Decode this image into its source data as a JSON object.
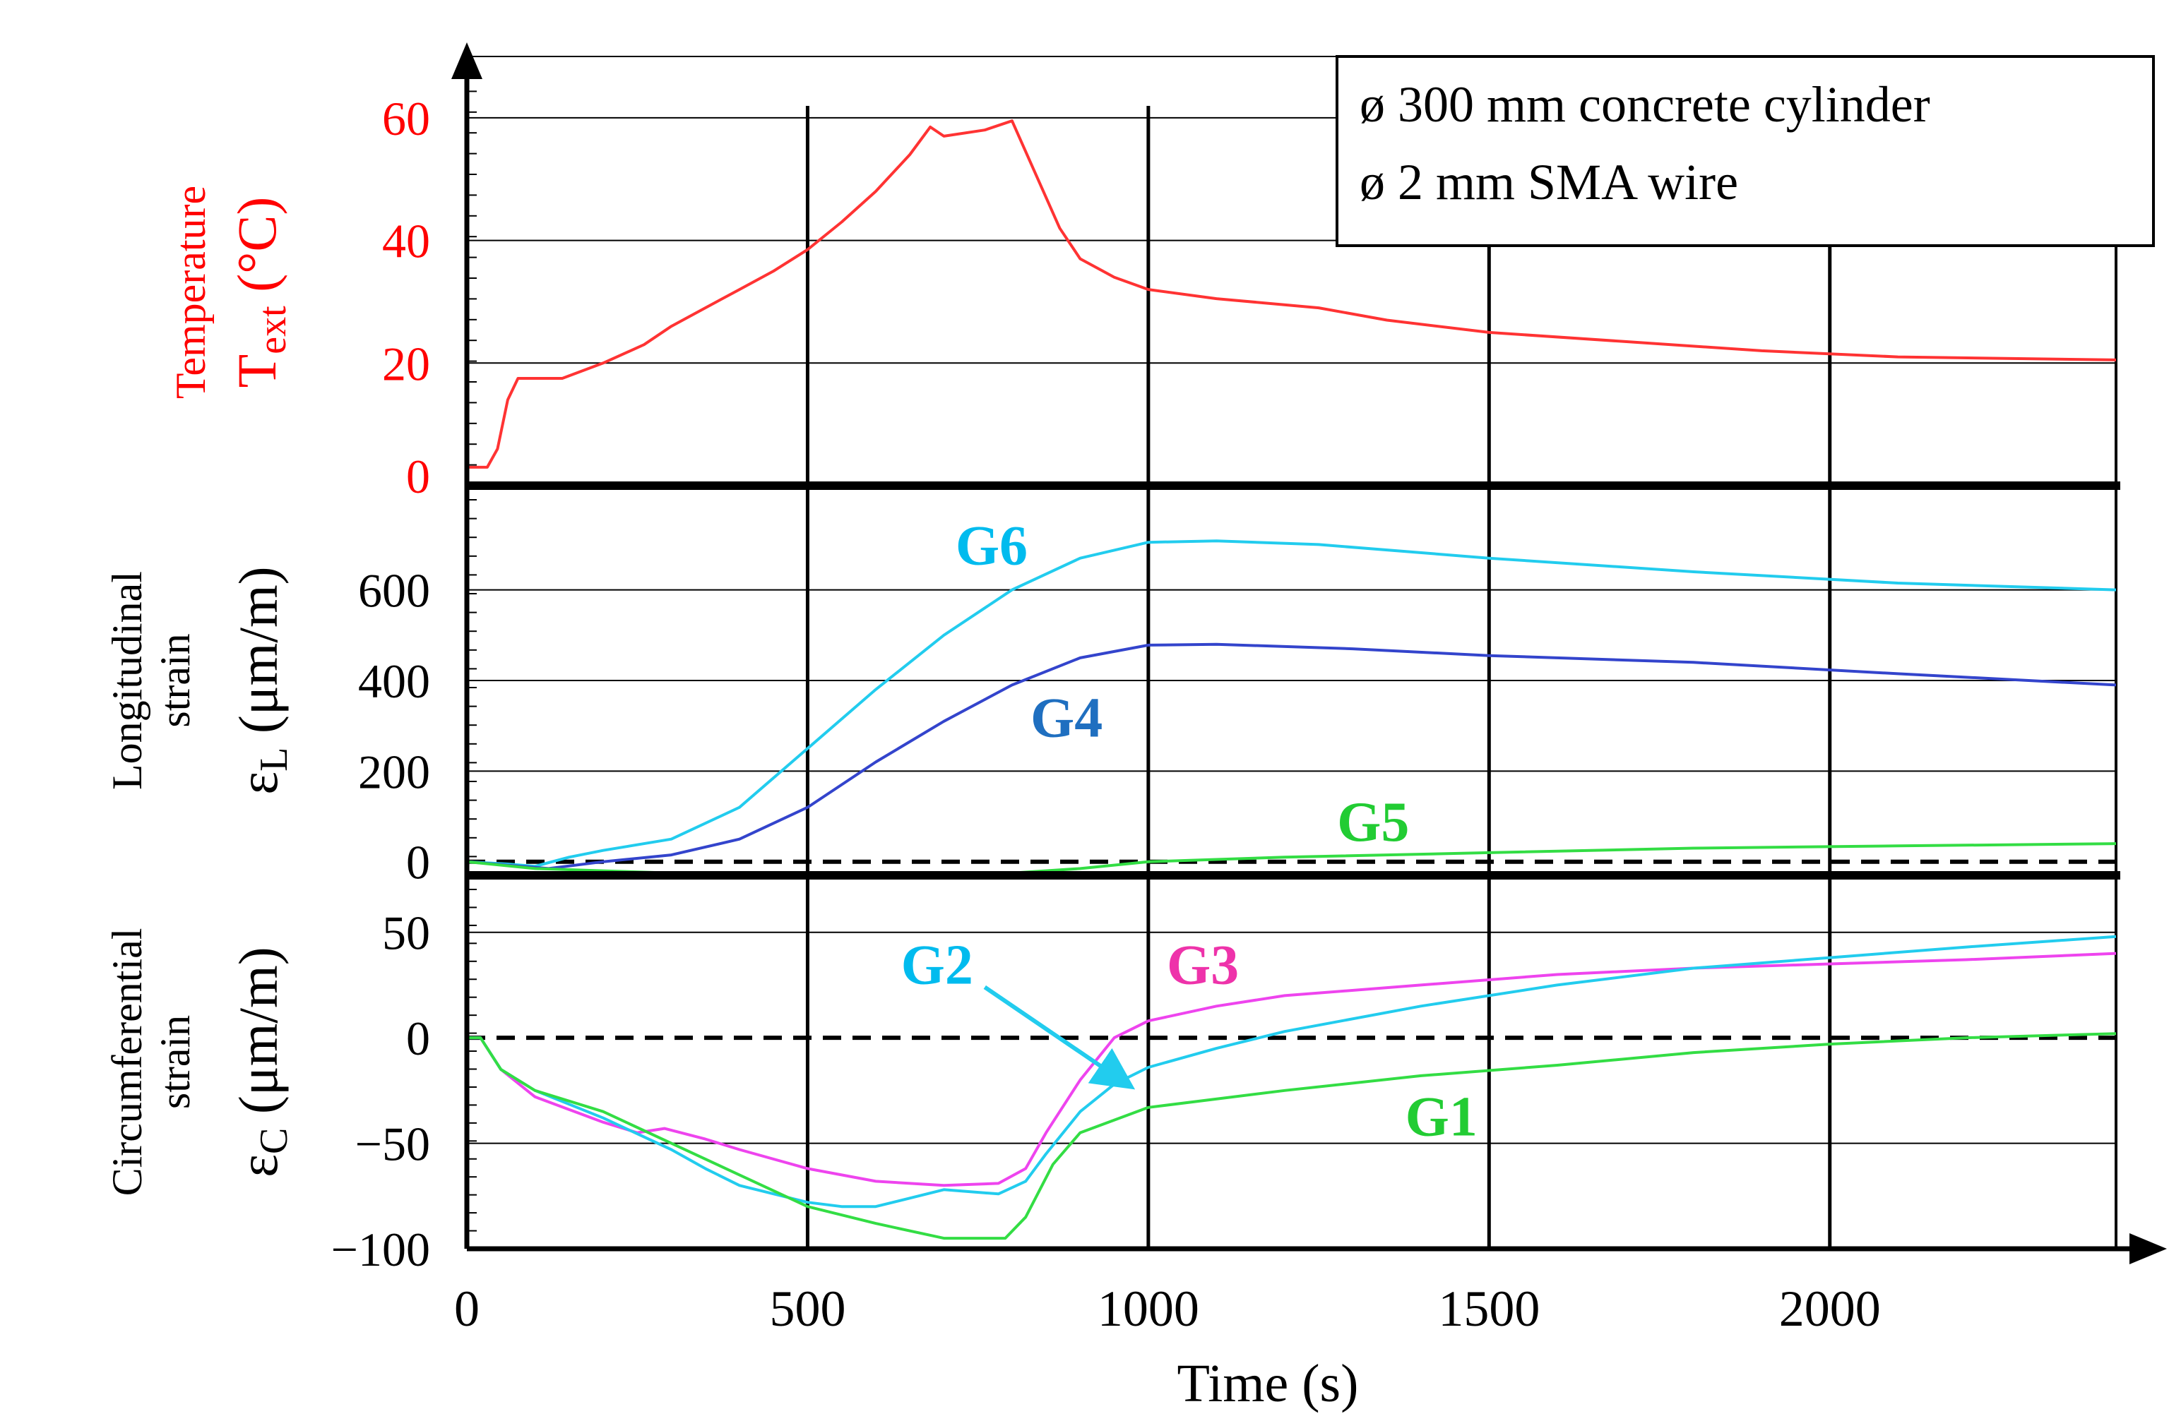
{
  "colors": {
    "temperature": "#ff3333",
    "temperature_label": "#ff0000",
    "cyan": "#22ccee",
    "cyan_label": "#00bbee",
    "blue": "#3344cc",
    "blue_label": "#1f6fc0",
    "green": "#33dd44",
    "green_label": "#22cc33",
    "magenta": "#ee44ee",
    "magenta_label": "#ee33aa",
    "grid": "#000000"
  },
  "chart_data": {
    "type": "line",
    "x_axis": {
      "label": "Time (s)",
      "range": [
        0,
        2420
      ],
      "ticks": [
        0,
        500,
        1000,
        1500,
        2000
      ],
      "tick_labels": [
        "0",
        "500",
        "1000",
        "1500",
        "2000"
      ]
    },
    "legend_box": {
      "placement": "top-right",
      "lines": [
        "ø 300 mm concrete cylinder",
        "ø 2 mm SMA wire"
      ]
    },
    "panels": [
      {
        "id": "temperature",
        "ylabel_top": "Temperature",
        "ylabel_main": "T",
        "ylabel_sub": "ext",
        "ylabel_unit": " (°C)",
        "yrange": [
          0,
          70
        ],
        "ticks": [
          0,
          20,
          40,
          60
        ],
        "tick_labels": [
          "0",
          "20",
          "40",
          "60"
        ],
        "series": [
          {
            "name": "Text",
            "color_key": "temperature",
            "points": [
              [
                0,
                3
              ],
              [
                30,
                3
              ],
              [
                45,
                6
              ],
              [
                60,
                14
              ],
              [
                75,
                17.5
              ],
              [
                140,
                17.5
              ],
              [
                200,
                20
              ],
              [
                260,
                23
              ],
              [
                300,
                26
              ],
              [
                350,
                29
              ],
              [
                400,
                32
              ],
              [
                450,
                35
              ],
              [
                500,
                38.5
              ],
              [
                550,
                43
              ],
              [
                600,
                48
              ],
              [
                650,
                54
              ],
              [
                680,
                58.5
              ],
              [
                700,
                57
              ],
              [
                760,
                58
              ],
              [
                800,
                59.5
              ],
              [
                830,
                52
              ],
              [
                870,
                42
              ],
              [
                900,
                37
              ],
              [
                950,
                34
              ],
              [
                1000,
                32
              ],
              [
                1100,
                30.5
              ],
              [
                1250,
                29
              ],
              [
                1350,
                27
              ],
              [
                1500,
                25
              ],
              [
                1700,
                23.5
              ],
              [
                1900,
                22
              ],
              [
                2100,
                21
              ],
              [
                2420,
                20.5
              ]
            ]
          }
        ],
        "annotations": []
      },
      {
        "id": "longitudinal",
        "ylabel_top": "Longitudinal",
        "ylabel_bottom": "strain",
        "ylabel_main": "ε",
        "ylabel_sub": "L",
        "ylabel_unit": " (μm/m)",
        "yrange": [
          -30,
          830
        ],
        "ticks": [
          0,
          200,
          400,
          600
        ],
        "tick_labels": [
          "0",
          "200",
          "400",
          "600"
        ],
        "zero_line": true,
        "series": [
          {
            "name": "G6",
            "color_key": "cyan",
            "points": [
              [
                0,
                0
              ],
              [
                60,
                -5
              ],
              [
                100,
                -10
              ],
              [
                150,
                10
              ],
              [
                200,
                25
              ],
              [
                300,
                50
              ],
              [
                400,
                120
              ],
              [
                500,
                250
              ],
              [
                600,
                380
              ],
              [
                700,
                500
              ],
              [
                800,
                600
              ],
              [
                900,
                670
              ],
              [
                1000,
                705
              ],
              [
                1100,
                708
              ],
              [
                1250,
                700
              ],
              [
                1500,
                670
              ],
              [
                1800,
                640
              ],
              [
                2100,
                615
              ],
              [
                2420,
                600
              ]
            ]
          },
          {
            "name": "G4",
            "color_key": "blue",
            "points": [
              [
                0,
                0
              ],
              [
                80,
                -10
              ],
              [
                120,
                -15
              ],
              [
                200,
                0
              ],
              [
                300,
                15
              ],
              [
                400,
                50
              ],
              [
                500,
                120
              ],
              [
                600,
                220
              ],
              [
                700,
                310
              ],
              [
                800,
                390
              ],
              [
                900,
                450
              ],
              [
                1000,
                478
              ],
              [
                1100,
                480
              ],
              [
                1300,
                470
              ],
              [
                1500,
                455
              ],
              [
                1800,
                440
              ],
              [
                2100,
                415
              ],
              [
                2420,
                390
              ]
            ]
          },
          {
            "name": "G5",
            "color_key": "green",
            "points": [
              [
                0,
                0
              ],
              [
                100,
                -15
              ],
              [
                200,
                -20
              ],
              [
                300,
                -25
              ],
              [
                500,
                -35
              ],
              [
                600,
                -30
              ],
              [
                800,
                -25
              ],
              [
                900,
                -15
              ],
              [
                1000,
                0
              ],
              [
                1200,
                10
              ],
              [
                1500,
                20
              ],
              [
                1800,
                30
              ],
              [
                2100,
                35
              ],
              [
                2420,
                40
              ]
            ]
          }
        ],
        "annotations": [
          {
            "text": "G6",
            "color_key": "cyan_label",
            "x": 770,
            "y": 700
          },
          {
            "text": "G4",
            "color_key": "blue_label",
            "x": 880,
            "y": 320
          },
          {
            "text": "G5",
            "color_key": "green_label",
            "x": 1330,
            "y": 90
          }
        ]
      },
      {
        "id": "circumferential",
        "ylabel_top": "Circumferential",
        "ylabel_bottom": "strain",
        "ylabel_main": "ε",
        "ylabel_sub": "C",
        "ylabel_unit": " (μm/m)",
        "yrange": [
          -100,
          77
        ],
        "ticks": [
          -100,
          -50,
          0,
          50
        ],
        "tick_labels": [
          "−100",
          "−50",
          "0",
          "50"
        ],
        "zero_line": true,
        "series": [
          {
            "name": "G3",
            "color_key": "magenta",
            "points": [
              [
                0,
                0
              ],
              [
                20,
                0
              ],
              [
                50,
                -15
              ],
              [
                100,
                -28
              ],
              [
                200,
                -40
              ],
              [
                250,
                -45
              ],
              [
                290,
                -43
              ],
              [
                350,
                -48
              ],
              [
                400,
                -53
              ],
              [
                500,
                -62
              ],
              [
                600,
                -68
              ],
              [
                700,
                -70
              ],
              [
                780,
                -69
              ],
              [
                820,
                -62
              ],
              [
                850,
                -45
              ],
              [
                900,
                -20
              ],
              [
                950,
                0
              ],
              [
                1000,
                8
              ],
              [
                1100,
                15
              ],
              [
                1200,
                20
              ],
              [
                1400,
                25
              ],
              [
                1600,
                30
              ],
              [
                1800,
                33
              ],
              [
                2000,
                35
              ],
              [
                2200,
                37
              ],
              [
                2420,
                40
              ]
            ]
          },
          {
            "name": "G2",
            "color_key": "cyan",
            "points": [
              [
                0,
                0
              ],
              [
                20,
                0
              ],
              [
                50,
                -15
              ],
              [
                100,
                -25
              ],
              [
                200,
                -38
              ],
              [
                300,
                -53
              ],
              [
                350,
                -62
              ],
              [
                400,
                -70
              ],
              [
                500,
                -78
              ],
              [
                550,
                -80
              ],
              [
                600,
                -80
              ],
              [
                650,
                -76
              ],
              [
                700,
                -72
              ],
              [
                780,
                -74
              ],
              [
                820,
                -68
              ],
              [
                850,
                -55
              ],
              [
                900,
                -35
              ],
              [
                950,
                -22
              ],
              [
                1000,
                -14
              ],
              [
                1100,
                -5
              ],
              [
                1200,
                3
              ],
              [
                1400,
                15
              ],
              [
                1600,
                25
              ],
              [
                1800,
                33
              ],
              [
                2000,
                38
              ],
              [
                2200,
                43
              ],
              [
                2420,
                48
              ]
            ]
          },
          {
            "name": "G1",
            "color_key": "green",
            "points": [
              [
                0,
                0
              ],
              [
                20,
                0
              ],
              [
                50,
                -15
              ],
              [
                100,
                -25
              ],
              [
                200,
                -35
              ],
              [
                300,
                -50
              ],
              [
                400,
                -65
              ],
              [
                500,
                -80
              ],
              [
                600,
                -88
              ],
              [
                700,
                -95
              ],
              [
                790,
                -95
              ],
              [
                820,
                -85
              ],
              [
                860,
                -60
              ],
              [
                900,
                -45
              ],
              [
                1000,
                -33
              ],
              [
                1200,
                -25
              ],
              [
                1400,
                -18
              ],
              [
                1600,
                -13
              ],
              [
                1800,
                -7
              ],
              [
                2000,
                -3
              ],
              [
                2200,
                0
              ],
              [
                2420,
                2
              ]
            ]
          }
        ],
        "annotations": [
          {
            "text": "G2",
            "color_key": "cyan_label",
            "x": 690,
            "y": 35
          },
          {
            "text": "G3",
            "color_key": "magenta_label",
            "x": 1080,
            "y": 35
          },
          {
            "text": "G1",
            "color_key": "green_label",
            "x": 1430,
            "y": -37
          }
        ],
        "arrow": {
          "color_key": "cyan",
          "from": [
            760,
            24
          ],
          "to": [
            960,
            -20
          ]
        }
      }
    ]
  }
}
